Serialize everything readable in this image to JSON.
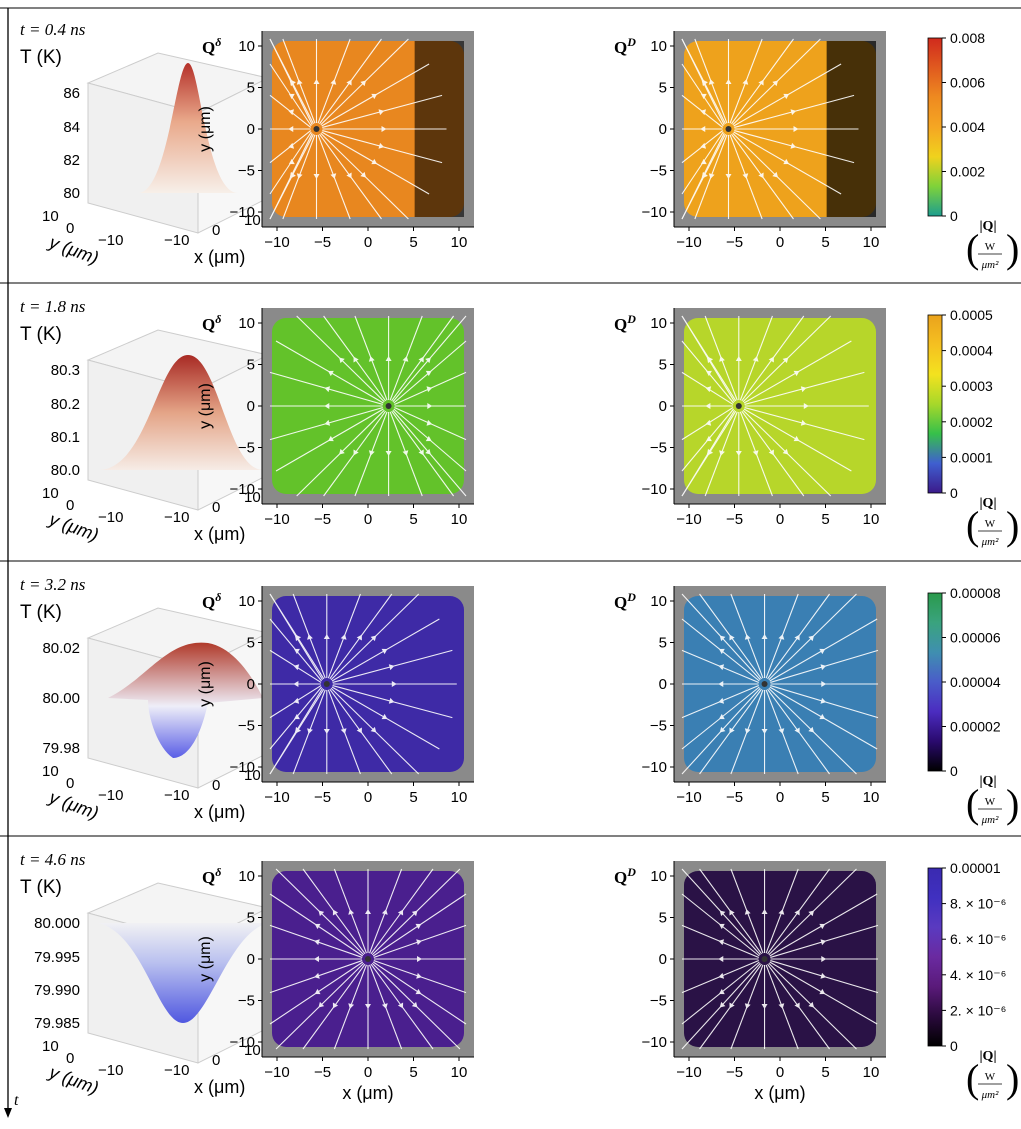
{
  "figure": {
    "time_axis_label": "t",
    "panel_labels": {
      "delta": "Q",
      "delta_sup": "δ",
      "diffusive": "Q",
      "diffusive_sup": "D"
    },
    "surface_axes": {
      "temperature": "T (K)",
      "x": "x (μm)",
      "y": "y (μm)",
      "y_ticks": [
        "10",
        "0",
        "−10"
      ],
      "x_ticks": [
        "−10",
        "0",
        "10"
      ]
    },
    "flux_axes": {
      "x": "x (μm)",
      "y": "y (μm)",
      "ticks": [
        "−10",
        "−5",
        "0",
        "5",
        "10"
      ]
    },
    "colorbar_unit": {
      "label": "|Q|",
      "numerator": "W",
      "denominator": "μm²"
    },
    "rows": [
      {
        "time": "t = 0.4 ns",
        "temperature_ticks": [
          "86",
          "84",
          "82",
          "80"
        ],
        "temperature_ticks_t": [
          1.0,
          0.66,
          0.33,
          0.0
        ],
        "surface_mode": "peak",
        "colorbar_ticks": [
          "0.008",
          "0.006",
          "0.004",
          "0.002",
          "0"
        ],
        "colormap": "hot",
        "fields": {
          "delta": {
            "color": "#e8871f",
            "source_x": -5
          },
          "diffusive": {
            "color": "#eea21c",
            "source_x": -5
          }
        }
      },
      {
        "time": "t = 1.8 ns",
        "temperature_ticks": [
          "80.3",
          "80.2",
          "80.1",
          "80.0"
        ],
        "temperature_ticks_t": [
          1.0,
          0.66,
          0.33,
          0.0
        ],
        "surface_mode": "broad",
        "colorbar_ticks": [
          "0.0005",
          "0.0004",
          "0.0003",
          "0.0002",
          "0.0001",
          "0"
        ],
        "colormap": "rainbow",
        "fields": {
          "delta": {
            "color": "#63c22a",
            "source_x": 2
          },
          "diffusive": {
            "color": "#b7d62a",
            "source_x": -4
          }
        }
      },
      {
        "time": "t = 3.2 ns",
        "temperature_ticks": [
          "80.02",
          "80.00",
          "79.98"
        ],
        "temperature_ticks_t": [
          1.0,
          0.5,
          0.0
        ],
        "surface_mode": "mixed",
        "colorbar_ticks": [
          "0.00008",
          "0.00006",
          "0.00004",
          "0.00002",
          "0"
        ],
        "colormap": "deep",
        "fields": {
          "delta": {
            "color": "#3e2aa6",
            "source_x": -4
          },
          "diffusive": {
            "color": "#3a7fb3",
            "source_x": -1.5
          }
        }
      },
      {
        "time": "t = 4.6 ns",
        "temperature_ticks": [
          "80.000",
          "79.995",
          "79.990",
          "79.985"
        ],
        "temperature_ticks_t": [
          1.0,
          0.66,
          0.33,
          0.0
        ],
        "surface_mode": "dip",
        "colorbar_ticks": [
          "0.00001",
          "8. × 10⁻⁶",
          "6. × 10⁻⁶",
          "4. × 10⁻⁶",
          "2. × 10⁻⁶",
          "0"
        ],
        "colormap": "purple",
        "fields": {
          "delta": {
            "color": "#4a1f8e",
            "source_x": 0
          },
          "diffusive": {
            "color": "#2a1246",
            "source_x": -1.5
          }
        }
      }
    ]
  }
}
